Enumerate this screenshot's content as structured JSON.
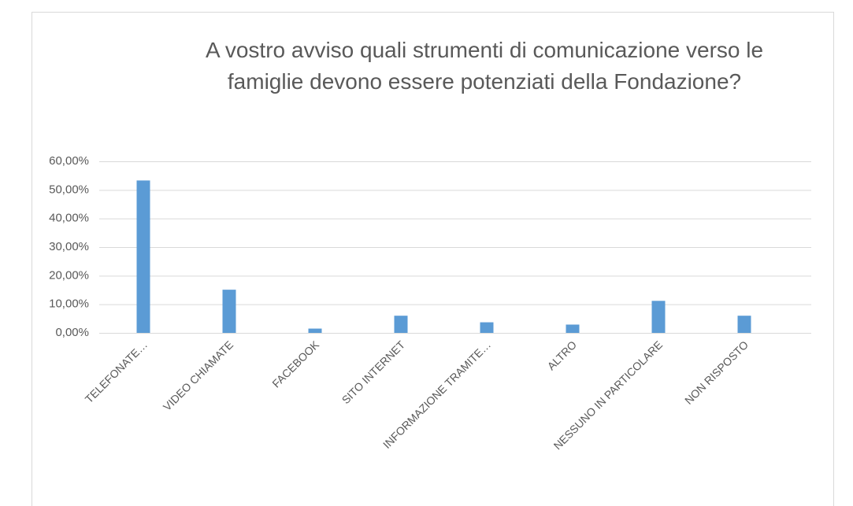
{
  "chart_data": {
    "type": "bar",
    "title": "A vostro avviso quali strumenti di comunicazione verso le famiglie devono essere  potenziati della Fondazione?",
    "categories": [
      "TELEFONATE…",
      "VIDEO CHIAMATE",
      "FACEBOOK",
      "SITO INTERNET",
      "INFORMAZIONE TRAMITE…",
      "ALTRO",
      "NESSUNO IN PARTICOLARE",
      "NON RISPOSTO"
    ],
    "values": [
      53.3,
      15.1,
      1.5,
      6.0,
      3.7,
      2.9,
      11.2,
      6.0
    ],
    "color": "#5b9bd5",
    "ylim": [
      0,
      60
    ],
    "yticks": [
      {
        "value": 0,
        "label": "0,00%"
      },
      {
        "value": 10,
        "label": "10,00%"
      },
      {
        "value": 20,
        "label": "20,00%"
      },
      {
        "value": 30,
        "label": "30,00%"
      },
      {
        "value": 40,
        "label": "40,00%"
      },
      {
        "value": 50,
        "label": "50,00%"
      },
      {
        "value": 60,
        "label": "60,00%"
      }
    ],
    "grid": true
  }
}
